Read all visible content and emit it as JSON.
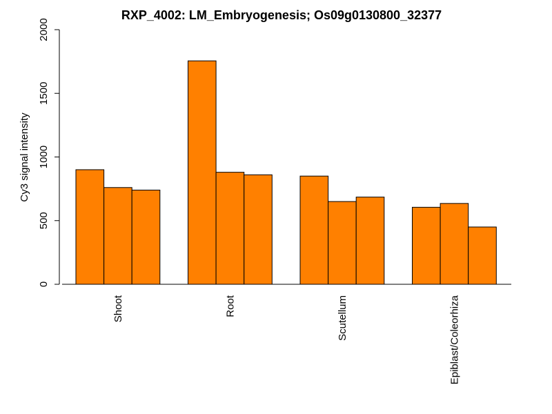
{
  "chart_data": {
    "type": "bar",
    "title": "RXP_4002: LM_Embryogenesis; Os09g0130800_32377",
    "ylabel": "Cy3 signal intensity",
    "xlabel": "",
    "ylim": [
      0,
      2000
    ],
    "yticks": [
      0,
      500,
      1000,
      1500,
      2000
    ],
    "categories": [
      "Shoot",
      "Root",
      "Scutellum",
      "Epiblast/Coleorhiza"
    ],
    "bar_color": "#FF8000",
    "series": [
      {
        "values": [
          900,
          1755,
          850,
          605
        ]
      },
      {
        "values": [
          760,
          880,
          650,
          635
        ]
      },
      {
        "values": [
          740,
          860,
          685,
          450
        ]
      }
    ],
    "grid": false,
    "legend": "none"
  }
}
